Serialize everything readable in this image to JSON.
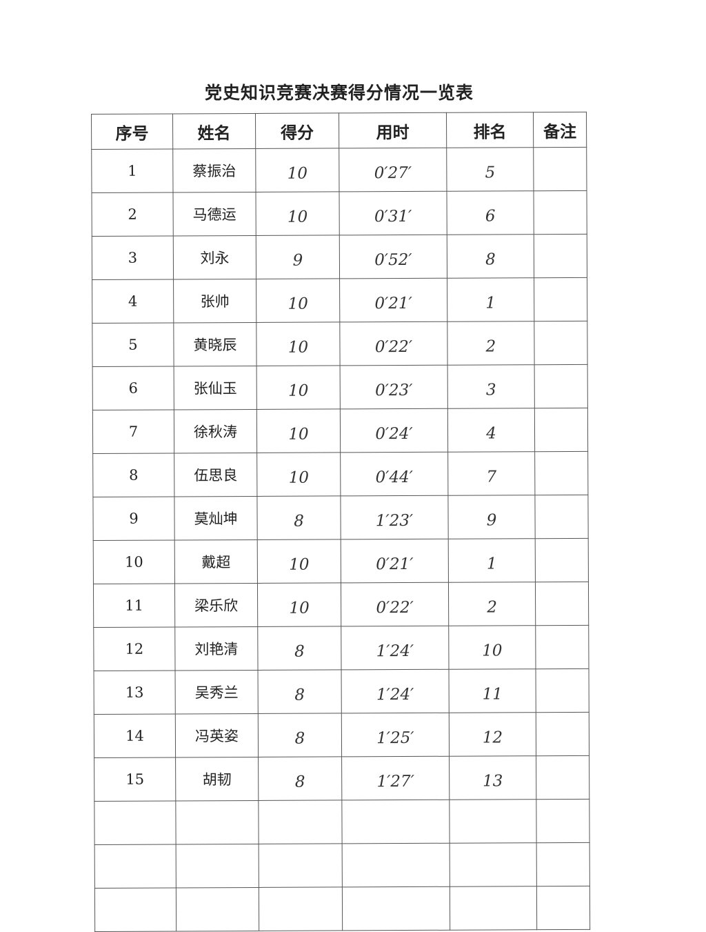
{
  "title": "党史知识竞赛决赛得分情况一览表",
  "headers": [
    "序号",
    "姓名",
    "得分",
    "用时",
    "排名",
    "备注"
  ],
  "rows": [
    {
      "no": "1",
      "name": "蔡振治",
      "score": "10",
      "time": "0′27′",
      "rank": "5",
      "note": ""
    },
    {
      "no": "2",
      "name": "马德运",
      "score": "10",
      "time": "0′31′",
      "rank": "6",
      "note": ""
    },
    {
      "no": "3",
      "name": "刘永",
      "score": "9",
      "time": "0′52′",
      "rank": "8",
      "note": ""
    },
    {
      "no": "4",
      "name": "张帅",
      "score": "10",
      "time": "0′21′",
      "rank": "1",
      "note": ""
    },
    {
      "no": "5",
      "name": "黄晓辰",
      "score": "10",
      "time": "0′22′",
      "rank": "2",
      "note": ""
    },
    {
      "no": "6",
      "name": "张仙玉",
      "score": "10",
      "time": "0′23′",
      "rank": "3",
      "note": ""
    },
    {
      "no": "7",
      "name": "徐秋涛",
      "score": "10",
      "time": "0′24′",
      "rank": "4",
      "note": ""
    },
    {
      "no": "8",
      "name": "伍思良",
      "score": "10",
      "time": "0′44′",
      "rank": "7",
      "note": ""
    },
    {
      "no": "9",
      "name": "莫灿坤",
      "score": "8",
      "time": "1′23′",
      "rank": "9",
      "note": ""
    },
    {
      "no": "10",
      "name": "戴超",
      "score": "10",
      "time": "0′21′",
      "rank": "1",
      "note": ""
    },
    {
      "no": "11",
      "name": "梁乐欣",
      "score": "10",
      "time": "0′22′",
      "rank": "2",
      "note": ""
    },
    {
      "no": "12",
      "name": "刘艳清",
      "score": "8",
      "time": "1′24′",
      "rank": "10",
      "note": ""
    },
    {
      "no": "13",
      "name": "吴秀兰",
      "score": "8",
      "time": "1′24′",
      "rank": "11",
      "note": ""
    },
    {
      "no": "14",
      "name": "冯英姿",
      "score": "8",
      "time": "1′25′",
      "rank": "12",
      "note": ""
    },
    {
      "no": "15",
      "name": "胡韧",
      "score": "8",
      "time": "1′27′",
      "rank": "13",
      "note": ""
    },
    {
      "no": "",
      "name": "",
      "score": "",
      "time": "",
      "rank": "",
      "note": ""
    },
    {
      "no": "",
      "name": "",
      "score": "",
      "time": "",
      "rank": "",
      "note": ""
    },
    {
      "no": "",
      "name": "",
      "score": "",
      "time": "",
      "rank": "",
      "note": ""
    }
  ]
}
